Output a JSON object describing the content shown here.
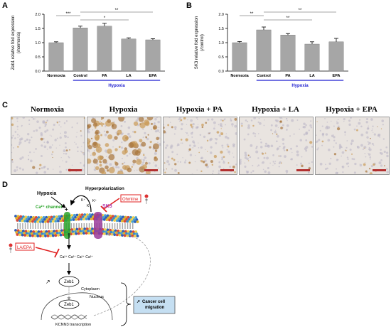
{
  "panels": {
    "a": "A",
    "b": "B",
    "c": "C",
    "d": "D"
  },
  "chart_data": [
    {
      "type": "bar",
      "ylabel_line1": "Zeb1 relative fold expression",
      "ylabel_line2": "(/normoxia)",
      "categories": [
        "Normoxia",
        "Control",
        "PA",
        "LA",
        "EPA"
      ],
      "values": [
        1.0,
        1.52,
        1.58,
        1.13,
        1.1
      ],
      "errors": [
        0.03,
        0.06,
        0.1,
        0.04,
        0.04
      ],
      "ylim": [
        0,
        2.0
      ],
      "yticks": [
        "0.0",
        "0.5",
        "1.0",
        "1.5",
        "2.0"
      ],
      "group_label": "Hypoxia",
      "sig": [
        {
          "from": 0,
          "to": 1,
          "label": "***"
        },
        {
          "from": 1,
          "to": 3,
          "label": "*"
        },
        {
          "from": 1,
          "to": 4,
          "label": "**"
        }
      ]
    },
    {
      "type": "bar",
      "ylabel_line1": "SK3 relative fold expression",
      "ylabel_line2": "(/control)",
      "categories": [
        "Normoxia",
        "Control",
        "PA",
        "LA",
        "EPA"
      ],
      "values": [
        1.0,
        1.45,
        1.27,
        0.95,
        1.03
      ],
      "errors": [
        0.04,
        0.1,
        0.05,
        0.08,
        0.12
      ],
      "ylim": [
        0,
        2.0
      ],
      "yticks": [
        "0.0",
        "0.5",
        "1.0",
        "1.5",
        "2.0"
      ],
      "group_label": "Hypoxia",
      "sig": [
        {
          "from": 0,
          "to": 1,
          "label": "**"
        },
        {
          "from": 1,
          "to": 3,
          "label": "**"
        },
        {
          "from": 1,
          "to": 4,
          "label": "**"
        }
      ]
    }
  ],
  "micrographs": [
    {
      "title": "Normoxia",
      "tone": "light"
    },
    {
      "title": "Hypoxia",
      "tone": "heavy"
    },
    {
      "title": "Hypoxia + PA",
      "tone": "medium"
    },
    {
      "title": "Hypoxia + LA",
      "tone": "light"
    },
    {
      "title": "Hypoxia + EPA",
      "tone": "light"
    }
  ],
  "diagram": {
    "hypoxia": "Hypoxia",
    "hyperpolarization": "Hyperpolarization",
    "k1": "K⁺",
    "k2": "K⁺",
    "k3": "K⁺",
    "ohmline": "Ohmline",
    "ca_channel": "Ca²⁺ channel",
    "sk3": "SK3",
    "la_epa": "LA/EPA",
    "ca_ions": "Ca²⁺  Ca²⁺  Ca²⁺  Ca²⁺",
    "arrow_up_1": "↗",
    "zeb1_top": "Zeb1",
    "cytoplasm": "Cytoplasm",
    "nucleus": "Nucleus",
    "zeb1_bottom": "Zeb1",
    "kcnn3": "KCNN3 transcription",
    "arrow_up_2": "↗",
    "outcome": "Cancer cell migration"
  },
  "colors": {
    "bar": "#a6a6a6",
    "hypoxia_line": "#1f1fd0",
    "ca_green": "#2ba52b",
    "sk3_magenta": "#b03ab0",
    "inhibit_red": "#e02020",
    "outcome_box": "#c5dff2"
  }
}
